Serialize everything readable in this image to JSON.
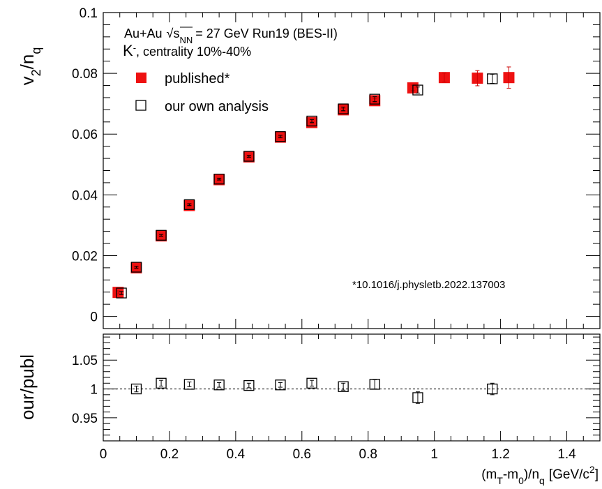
{
  "chart_data": [
    {
      "type": "scatter",
      "panel": "top",
      "ylabel_main": "v",
      "ylabel_sub1": "2",
      "ylabel_mid": "/n",
      "ylabel_sub2": "q",
      "xlim": [
        0,
        1.5
      ],
      "ylim": [
        -0.004,
        0.1
      ],
      "yticks": [
        "0",
        "0.02",
        "0.04",
        "0.06",
        "0.08",
        "0.1"
      ],
      "yticks_values": [
        0,
        0.02,
        0.04,
        0.06,
        0.08,
        0.1
      ],
      "annotation": {
        "line1_a": "Au+Au",
        "line1_sqrt": "s",
        "line1_sub": "NN",
        "line1_b": "= 27 GeV Run19 (BES-II)",
        "line2_k": "K",
        "line2_sup": "-",
        "line2_b": ", centrality 10%-40%",
        "doi": "*10.1016/j.physletb.2022.137003"
      },
      "series": [
        {
          "name": "published*",
          "marker": "filled-square",
          "color": "#ee1111",
          "x": [
            0.045,
            0.1,
            0.175,
            0.26,
            0.35,
            0.44,
            0.535,
            0.63,
            0.725,
            0.82,
            0.935,
            1.03,
            1.13,
            1.225
          ],
          "y": [
            0.0079,
            0.016,
            0.0265,
            0.0365,
            0.045,
            0.0525,
            0.059,
            0.0638,
            0.068,
            0.071,
            0.0752,
            0.0786,
            0.0784,
            0.0786
          ],
          "err": [
            0.0005,
            0.0003,
            0.0003,
            0.0003,
            0.0003,
            0.0003,
            0.0003,
            0.0004,
            0.0005,
            0.0007,
            0.0009,
            0.0015,
            0.0025,
            0.0035
          ]
        },
        {
          "name": "our own analysis",
          "marker": "open-square",
          "color": "#000000",
          "x": [
            0.055,
            0.1,
            0.175,
            0.26,
            0.35,
            0.44,
            0.535,
            0.63,
            0.725,
            0.82,
            0.95,
            1.175
          ],
          "y": [
            0.0077,
            0.0162,
            0.0267,
            0.0368,
            0.0452,
            0.0527,
            0.0592,
            0.0643,
            0.0683,
            0.0715,
            0.0745,
            0.0782
          ],
          "err": [
            0.0005,
            0.0003,
            0.0003,
            0.0003,
            0.0003,
            0.0003,
            0.0004,
            0.0005,
            0.0006,
            0.0008,
            0.001,
            0.0015
          ]
        }
      ]
    },
    {
      "type": "scatter",
      "panel": "bottom",
      "ylabel": "our/publ",
      "xlabel_a": "(m",
      "xlabel_sub1": "T",
      "xlabel_b": "-m",
      "xlabel_sub2": "0",
      "xlabel_c": ")/n",
      "xlabel_sub3": "q",
      "xlabel_d": "[GeV/c",
      "xlabel_sup": "2",
      "xlabel_e": "]",
      "xlim": [
        0,
        1.5
      ],
      "ylim": [
        0.91,
        1.095
      ],
      "yticks": [
        "0.95",
        "1",
        "1.05"
      ],
      "yticks_values": [
        0.95,
        1.0,
        1.05
      ],
      "xticks": [
        "0",
        "0.2",
        "0.4",
        "0.6",
        "0.8",
        "1",
        "1.2",
        "1.4"
      ],
      "xticks_values": [
        0,
        0.2,
        0.4,
        0.6,
        0.8,
        1.0,
        1.2,
        1.4
      ],
      "reference_line": 1.0,
      "series": [
        {
          "name": "our/publ",
          "marker": "open-square",
          "color": "#000000",
          "x": [
            0.1,
            0.175,
            0.26,
            0.35,
            0.44,
            0.535,
            0.63,
            0.725,
            0.82,
            0.95,
            1.175
          ],
          "y": [
            1.0,
            1.01,
            1.008,
            1.007,
            1.006,
            1.007,
            1.01,
            1.004,
            1.008,
            0.985,
            1.0
          ],
          "err": [
            0.005,
            0.005,
            0.004,
            0.004,
            0.004,
            0.004,
            0.005,
            0.006,
            0.008,
            0.01,
            0.01
          ]
        }
      ]
    }
  ]
}
